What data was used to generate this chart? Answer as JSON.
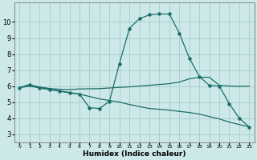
{
  "xlabel": "Humidex (Indice chaleur)",
  "bg_color": "#cce8e8",
  "grid_color": "#aacccc",
  "line_color": "#1a6e6a",
  "xlim": [
    -0.5,
    23.5
  ],
  "ylim": [
    2.5,
    11.2
  ],
  "yticks": [
    3,
    4,
    5,
    6,
    7,
    8,
    9,
    10
  ],
  "xticks": [
    0,
    1,
    2,
    3,
    4,
    5,
    6,
    7,
    8,
    9,
    10,
    11,
    12,
    13,
    14,
    15,
    16,
    17,
    18,
    19,
    20,
    21,
    22,
    23
  ],
  "curve1_x": [
    0,
    1,
    2,
    3,
    4,
    5,
    6,
    7,
    8,
    9,
    10,
    11,
    12,
    13,
    14,
    15,
    16,
    17,
    18,
    19,
    20,
    21,
    22,
    23
  ],
  "curve1_y": [
    5.9,
    6.1,
    5.9,
    5.8,
    5.7,
    5.6,
    5.5,
    4.65,
    4.6,
    5.05,
    7.4,
    9.6,
    10.2,
    10.45,
    10.5,
    10.5,
    9.3,
    7.75,
    6.6,
    6.05,
    6.0,
    4.9,
    4.0,
    3.45
  ],
  "curve2_x": [
    0,
    1,
    2,
    3,
    4,
    5,
    6,
    7,
    8,
    9,
    10,
    11,
    12,
    13,
    14,
    15,
    16,
    17,
    18,
    19,
    20,
    21,
    22,
    23
  ],
  "curve2_y": [
    5.9,
    6.05,
    5.95,
    5.85,
    5.8,
    5.78,
    5.82,
    5.83,
    5.84,
    5.88,
    5.92,
    5.95,
    6.0,
    6.05,
    6.1,
    6.15,
    6.25,
    6.45,
    6.55,
    6.55,
    6.05,
    6.0,
    5.98,
    6.0
  ],
  "curve3_x": [
    0,
    1,
    2,
    3,
    4,
    5,
    6,
    7,
    8,
    9,
    10,
    11,
    12,
    13,
    14,
    15,
    16,
    17,
    18,
    19,
    20,
    21,
    22,
    23
  ],
  "curve3_y": [
    5.9,
    6.0,
    5.88,
    5.78,
    5.68,
    5.58,
    5.5,
    5.35,
    5.2,
    5.1,
    5.0,
    4.85,
    4.72,
    4.6,
    4.55,
    4.5,
    4.42,
    4.35,
    4.25,
    4.1,
    3.95,
    3.75,
    3.6,
    3.45
  ]
}
